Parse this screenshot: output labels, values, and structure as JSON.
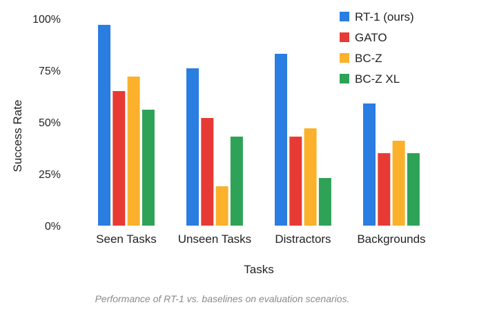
{
  "chart_data": {
    "type": "bar",
    "categories": [
      "Seen Tasks",
      "Unseen Tasks",
      "Distractors",
      "Backgrounds"
    ],
    "series": [
      {
        "name": "RT-1 (ours)",
        "color": "#2a7de1",
        "values": [
          97,
          76,
          83,
          59
        ]
      },
      {
        "name": "GATO",
        "color": "#e83a34",
        "values": [
          65,
          52,
          43,
          35
        ]
      },
      {
        "name": "BC-Z",
        "color": "#fbb12b",
        "values": [
          72,
          19,
          47,
          41
        ]
      },
      {
        "name": "BC-Z XL",
        "color": "#2ea257",
        "values": [
          56,
          43,
          23,
          35
        ]
      }
    ],
    "xlabel": "Tasks",
    "ylabel": "Success Rate",
    "ylim": [
      0,
      100
    ],
    "yticks": [
      0,
      25,
      50,
      75,
      100
    ],
    "ytick_labels": [
      "0%",
      "25%",
      "50%",
      "75%",
      "100%"
    ],
    "grid": false,
    "legend_position": "top-right"
  },
  "caption": "Performance of RT-1 vs. baselines on evaluation scenarios."
}
